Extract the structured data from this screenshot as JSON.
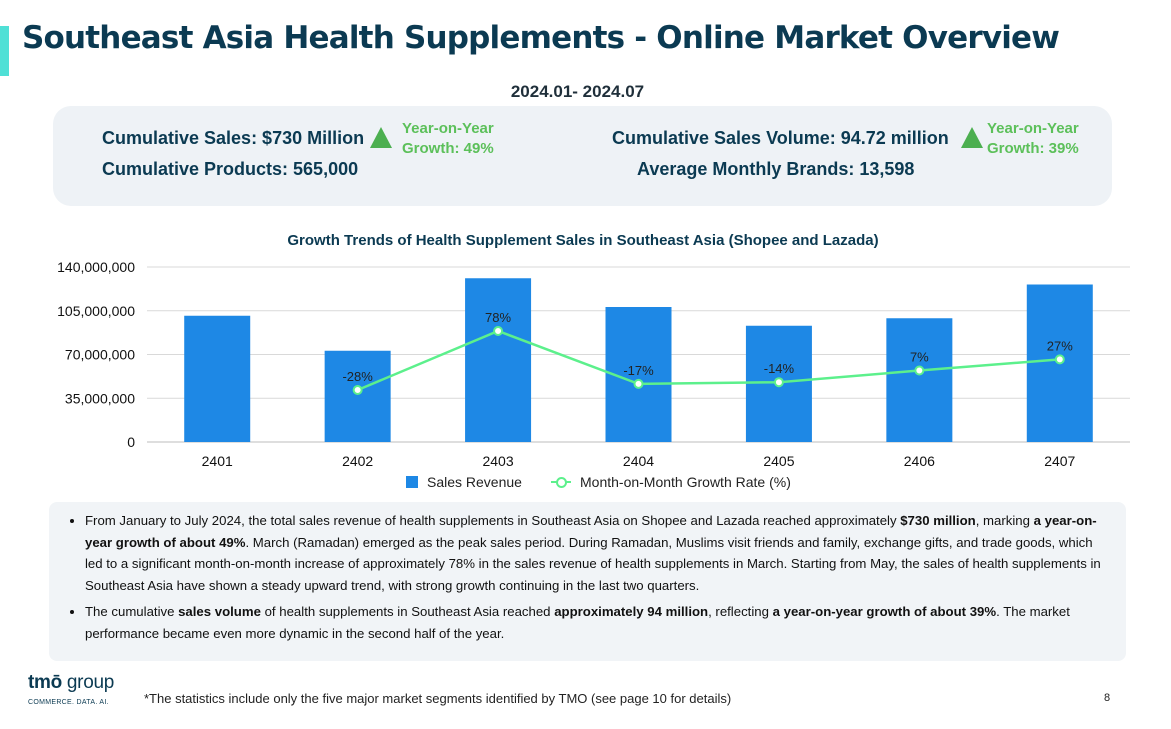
{
  "page": {
    "title": "Southeast Asia Health Supplements - Online Market Overview",
    "date_range": "2024.01- 2024.07",
    "page_number": "8",
    "footnote": "*The statistics include only the five major market segments identified by TMO (see page 10 for details)"
  },
  "kpis": {
    "left": {
      "line1": "Cumulative Sales: $730 Million",
      "line2": "Cumulative Products: 565,000",
      "yoy_line1": "Year-on-Year",
      "yoy_line2": "Growth: 49%"
    },
    "right": {
      "line1": "Cumulative Sales Volume: 94.72 million",
      "line2": "Average Monthly Brands: 13,598",
      "yoy_line1": "Year-on-Year",
      "yoy_line2": "Growth: 39%"
    }
  },
  "chart_data": {
    "type": "bar",
    "title": "Growth Trends of Health Supplement Sales in Southeast Asia (Shopee and Lazada)",
    "categories": [
      "2401",
      "2402",
      "2403",
      "2404",
      "2405",
      "2406",
      "2407"
    ],
    "ylim": [
      0,
      140000000
    ],
    "yticks": [
      "0",
      "35,000,000",
      "70,000,000",
      "105,000,000",
      "140,000,000"
    ],
    "ytick_values": [
      0,
      35000000,
      70000000,
      105000000,
      140000000
    ],
    "grid": true,
    "legend_position": "bottom",
    "series": [
      {
        "name": "Sales Revenue",
        "kind": "bar",
        "color": "#1e88e5",
        "values": [
          101000000,
          73000000,
          131000000,
          108000000,
          93000000,
          99000000,
          126000000
        ]
      },
      {
        "name": "Month-on-Month Growth Rate (%)",
        "kind": "line",
        "color": "#5cf08c",
        "values": [
          null,
          -28,
          78,
          -17,
          -14,
          7,
          27
        ],
        "labels": [
          null,
          "-28%",
          "78%",
          "-17%",
          "-14%",
          "7%",
          "27%"
        ]
      }
    ]
  },
  "notes": {
    "bullet1": {
      "p1": "From January to July 2024, the total sales revenue of health supplements in Southeast Asia on Shopee and Lazada reached approximately ",
      "b1": "$730 million",
      "p2": ", marking ",
      "b2": "a year-on-year growth of about 49%",
      "p3": ". March (Ramadan) emerged as the peak sales period. During Ramadan, Muslims visit friends and family, exchange gifts, and trade goods, which led to a significant month-on-month increase of approximately 78% in the sales revenue of health supplements in March. Starting from May, the sales of health supplements in Southeast Asia have shown a steady upward trend, with strong growth continuing in the last two quarters."
    },
    "bullet2": {
      "p1": "The cumulative ",
      "b1": "sales volume",
      "p2": " of health supplements in Southeast Asia reached ",
      "b2": "approximately 94 million",
      "p3": ", reflecting ",
      "b3": "a year-on-year growth of about 39%",
      "p4": ". The market performance became even more dynamic in the second half of the year."
    }
  },
  "logo": {
    "word_a": "tmō",
    "word_b": " group",
    "tagline": "COMMERCE. DATA. AI."
  }
}
